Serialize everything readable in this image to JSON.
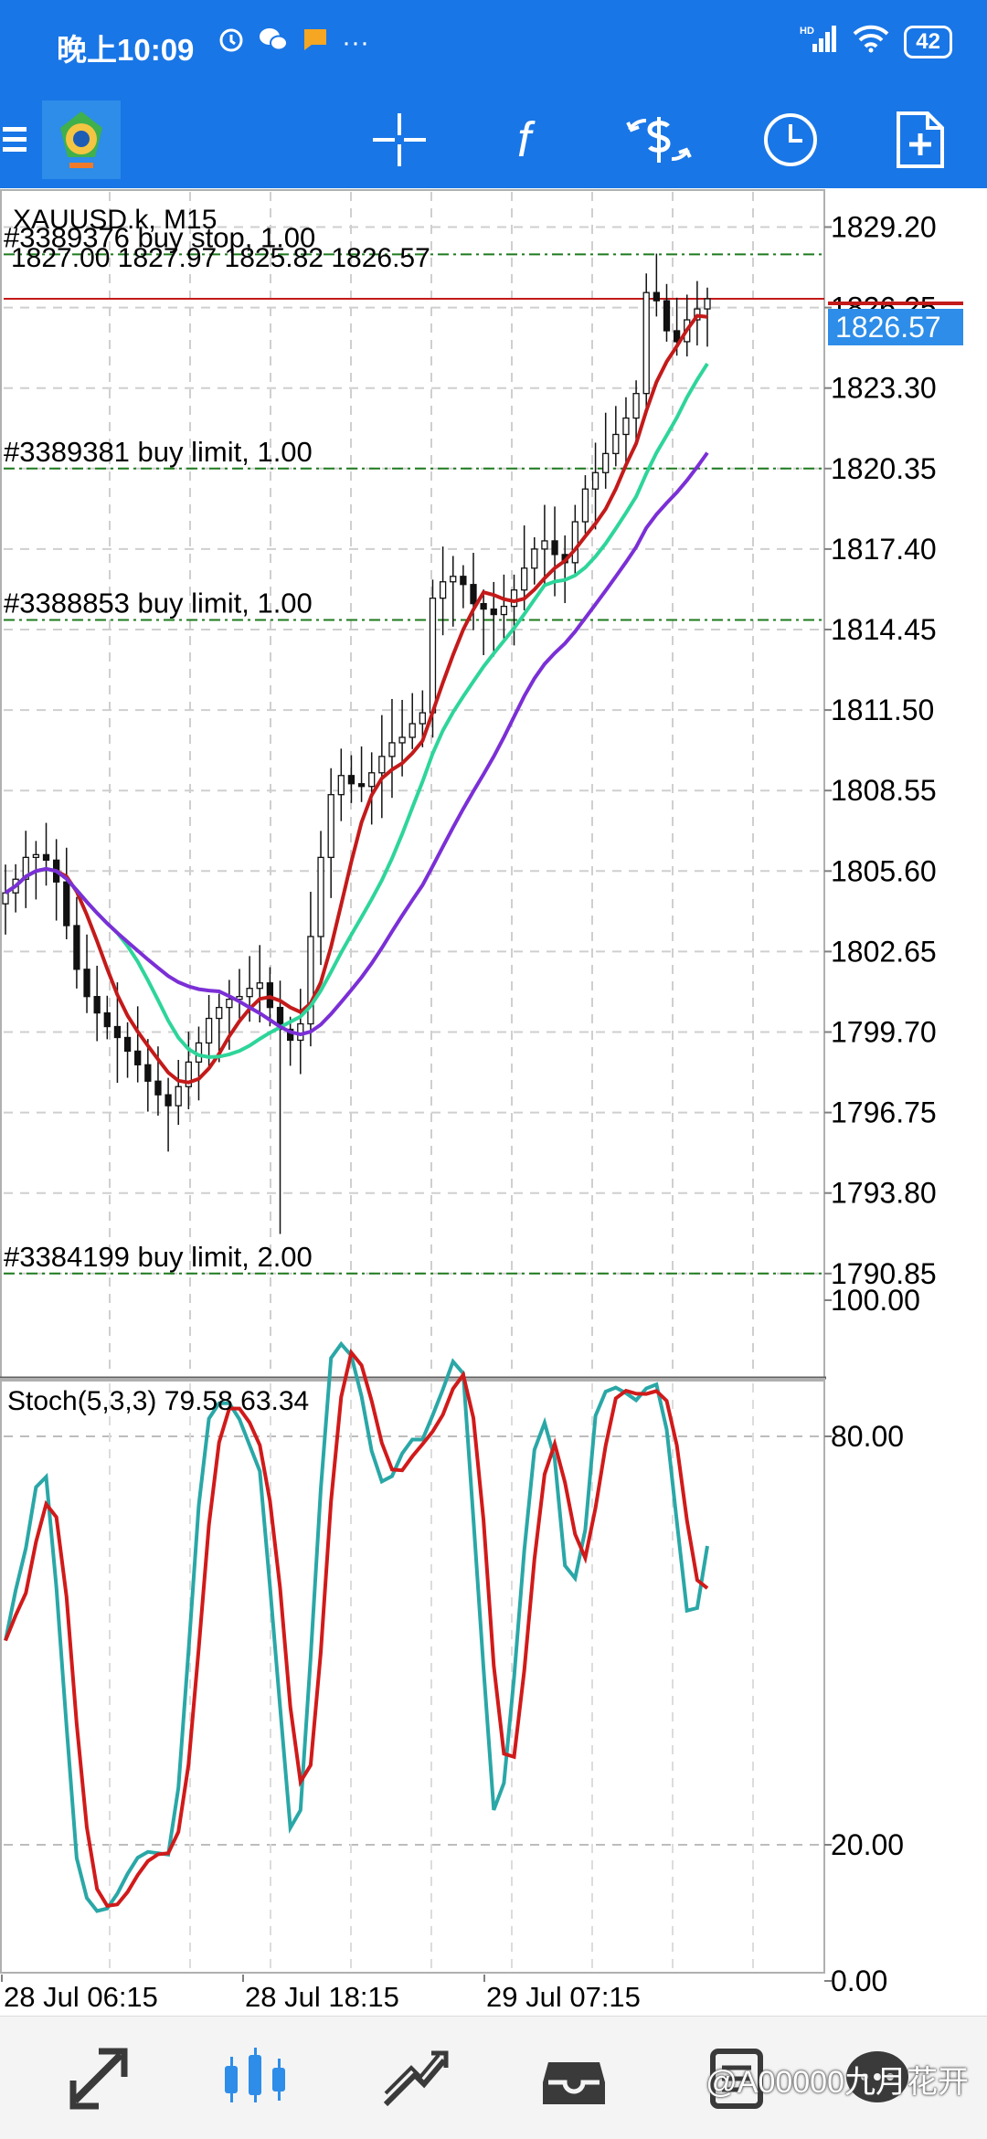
{
  "status_bar": {
    "time": "晚上10:09",
    "more": "···",
    "network": "HD",
    "battery": "42"
  },
  "toolbar": {
    "icons": [
      "menu-icon",
      "metatrader-logo-icon",
      "crosshair-icon",
      "indicators-icon",
      "trade-icon",
      "period-clock-icon",
      "new-document-icon"
    ],
    "function_label": "f"
  },
  "chart": {
    "symbol": "XAUUSD.k, M15",
    "ohlc": "1827.00 1827.97 1825.82 1826.57",
    "current_price": "1826.57",
    "price_ticks": [
      "1829.20",
      "1826.25",
      "1823.30",
      "1820.35",
      "1817.40",
      "1814.45",
      "1811.50",
      "1808.55",
      "1805.60",
      "1802.65",
      "1799.70",
      "1796.75",
      "1793.80",
      "1790.85"
    ],
    "orders": [
      {
        "label": "#3389376 buy stop, 1.00",
        "price": 1828.2
      },
      {
        "label": "#3389381 buy limit, 1.00",
        "price": 1820.35
      },
      {
        "label": "#3388853 buy limit, 1.00",
        "price": 1814.8
      },
      {
        "label": "#3384199 buy limit, 2.00",
        "price": 1790.85
      }
    ],
    "time_labels": [
      "28 Jul 06:15",
      "28 Jul 18:15",
      "29 Jul 07:15"
    ],
    "colors": {
      "ma_fast": "#c41a1a",
      "ma_mid": "#2ed59a",
      "ma_slow": "#7b2fd6",
      "order_line": "#1e7a1e",
      "price_tag_bg": "#2d8de8",
      "stoch_main": "#2aa7a7",
      "stoch_signal": "#d11a1a"
    }
  },
  "stoch": {
    "label": "Stoch(5,3,3) 79.58 63.34",
    "ticks": [
      "100.00",
      "80.00",
      "20.00",
      "0.00"
    ]
  },
  "chart_data": {
    "type": "candlestick",
    "title": "XAUUSD.k, M15",
    "ylim": [
      1788,
      1831
    ],
    "x_ticks": [
      "28 Jul 06:15",
      "28 Jul 18:15",
      "29 Jul 07:15"
    ],
    "close_path": [
      1804.8,
      1805.3,
      1806.1,
      1806.2,
      1806.0,
      1805.2,
      1803.6,
      1802.0,
      1801.0,
      1800.4,
      1799.9,
      1799.5,
      1799.0,
      1798.5,
      1797.9,
      1797.4,
      1797.0,
      1797.7,
      1798.6,
      1799.3,
      1800.2,
      1800.6,
      1800.9,
      1801.0,
      1801.3,
      1801.5,
      1800.6,
      1799.8,
      1799.4,
      1800.0,
      1803.2,
      1806.1,
      1808.4,
      1809.1,
      1808.8,
      1808.7,
      1809.2,
      1809.8,
      1810.3,
      1810.5,
      1811.0,
      1811.4,
      1815.6,
      1816.2,
      1816.4,
      1816.1,
      1815.4,
      1815.2,
      1815.0,
      1815.3,
      1815.9,
      1816.7,
      1817.4,
      1817.7,
      1817.2,
      1816.9,
      1818.4,
      1819.6,
      1820.2,
      1820.9,
      1821.6,
      1822.2,
      1823.1,
      1826.8,
      1826.5,
      1825.4,
      1825.0,
      1825.8,
      1826.2,
      1826.57
    ],
    "series": [
      {
        "name": "Stoch(5,3,3) main",
        "last": 79.58
      },
      {
        "name": "Stoch(5,3,3) signal",
        "last": 63.34
      }
    ]
  },
  "bottom_nav": {
    "items": [
      "quotes-icon",
      "chart-icon",
      "trade-icon",
      "history-icon",
      "messages-icon",
      "news-icon"
    ],
    "watermark": "@A00000九月花开"
  }
}
